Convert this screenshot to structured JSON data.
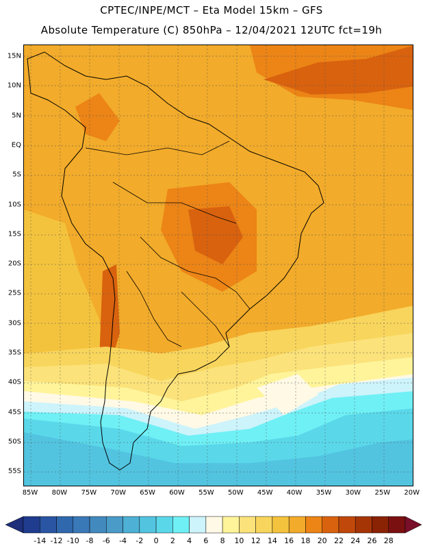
{
  "header": {
    "line1": "CPTEC/INPE/MCT  –   Eta Model 15km  –  GFS",
    "line2": "Absolute Temperature (C) 850hPa – 12/04/2021 12UTC fct=19h"
  },
  "map": {
    "lat_labels": [
      "15N",
      "10N",
      "5N",
      "EQ",
      "5S",
      "10S",
      "15S",
      "20S",
      "25S",
      "30S",
      "35S",
      "40S",
      "45S",
      "50S",
      "55S"
    ],
    "lon_labels": [
      "85W",
      "80W",
      "75W",
      "70W",
      "65W",
      "60W",
      "55W",
      "50W",
      "45W",
      "40W",
      "35W",
      "30W",
      "25W",
      "20W"
    ]
  },
  "colorbar": {
    "labels": [
      "-14",
      "-12",
      "-10",
      "-8",
      "-6",
      "-4",
      "-2",
      "0",
      "2",
      "4",
      "6",
      "8",
      "10",
      "12",
      "14",
      "16",
      "18",
      "20",
      "22",
      "24",
      "26",
      "28"
    ],
    "colors": [
      "#1f3c8f",
      "#2a55a3",
      "#3068ad",
      "#3a79b8",
      "#4289be",
      "#4a9bc8",
      "#4eb0d5",
      "#52c4e0",
      "#5ad8ea",
      "#6ff0f5",
      "#cdf3fb",
      "#fff9e6",
      "#fff49a",
      "#fbe27a",
      "#f8d55c",
      "#f4c33d",
      "#f2ab2a",
      "#ec8416",
      "#d9620e",
      "#c0480a",
      "#a63506",
      "#8a2204",
      "#7a1010"
    ],
    "under_color": "#1d2e7a",
    "over_color": "#7a0f2a"
  }
}
